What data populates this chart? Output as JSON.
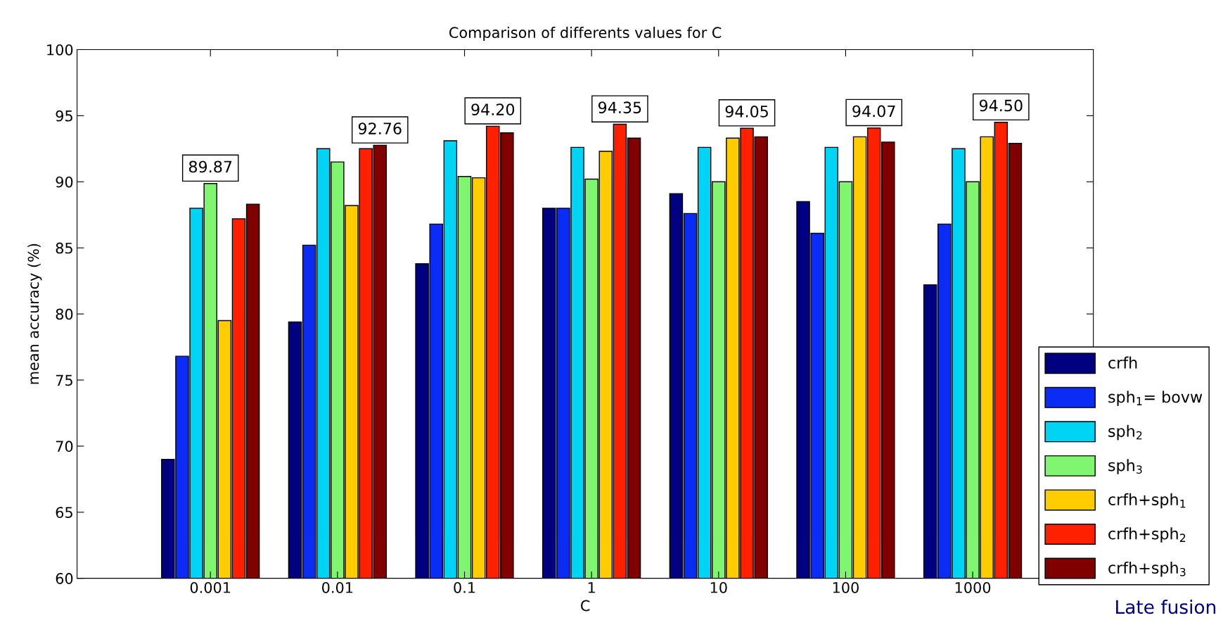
{
  "chart_data": {
    "type": "bar",
    "title": "Comparison of differents values for C",
    "xlabel": "C",
    "ylabel": "mean accuracy (%)",
    "categories": [
      "0.001",
      "0.01",
      "0.1",
      "1",
      "10",
      "100",
      "1000"
    ],
    "series": [
      {
        "name": "crfh",
        "color": "#000080",
        "values": [
          69.0,
          79.4,
          83.8,
          88.0,
          89.1,
          88.5,
          82.2
        ]
      },
      {
        "name": "sph$_{1}$= bovw",
        "color": "#0a2cf5",
        "values": [
          76.8,
          85.2,
          86.8,
          88.0,
          87.6,
          86.1,
          86.8
        ]
      },
      {
        "name": "sph$_{2}$",
        "color": "#00d4f5",
        "values": [
          88.0,
          92.5,
          93.1,
          92.6,
          92.6,
          92.6,
          92.5
        ]
      },
      {
        "name": "sph$_{3}$",
        "color": "#80f570",
        "values": [
          89.87,
          91.5,
          90.4,
          90.2,
          90.0,
          90.0,
          90.0
        ],
        "value_labels": [
          "89.87",
          null,
          null,
          null,
          null,
          null,
          null
        ]
      },
      {
        "name": "crfh+sph$_{1}$",
        "color": "#ffcc00",
        "values": [
          79.5,
          88.2,
          90.3,
          92.3,
          93.3,
          93.4,
          93.4
        ]
      },
      {
        "name": "crfh+sph$_{2}$",
        "color": "#ff2000",
        "values": [
          87.2,
          92.5,
          94.2,
          94.35,
          94.05,
          94.07,
          94.5
        ],
        "value_labels": [
          null,
          null,
          "94.20",
          "94.35",
          "94.05",
          "94.07",
          "94.50"
        ]
      },
      {
        "name": "crfh+sph$_{3}$",
        "color": "#800000",
        "values": [
          88.3,
          92.76,
          93.7,
          93.3,
          93.4,
          93.0,
          92.9
        ],
        "value_labels": [
          null,
          "92.76",
          null,
          null,
          null,
          null,
          null
        ]
      }
    ],
    "ylim": [
      60,
      100
    ],
    "yticks": [
      60,
      65,
      70,
      75,
      80,
      85,
      90,
      95,
      100
    ],
    "grid": false,
    "legend": "right",
    "annotations": [
      "Late fusion"
    ]
  }
}
